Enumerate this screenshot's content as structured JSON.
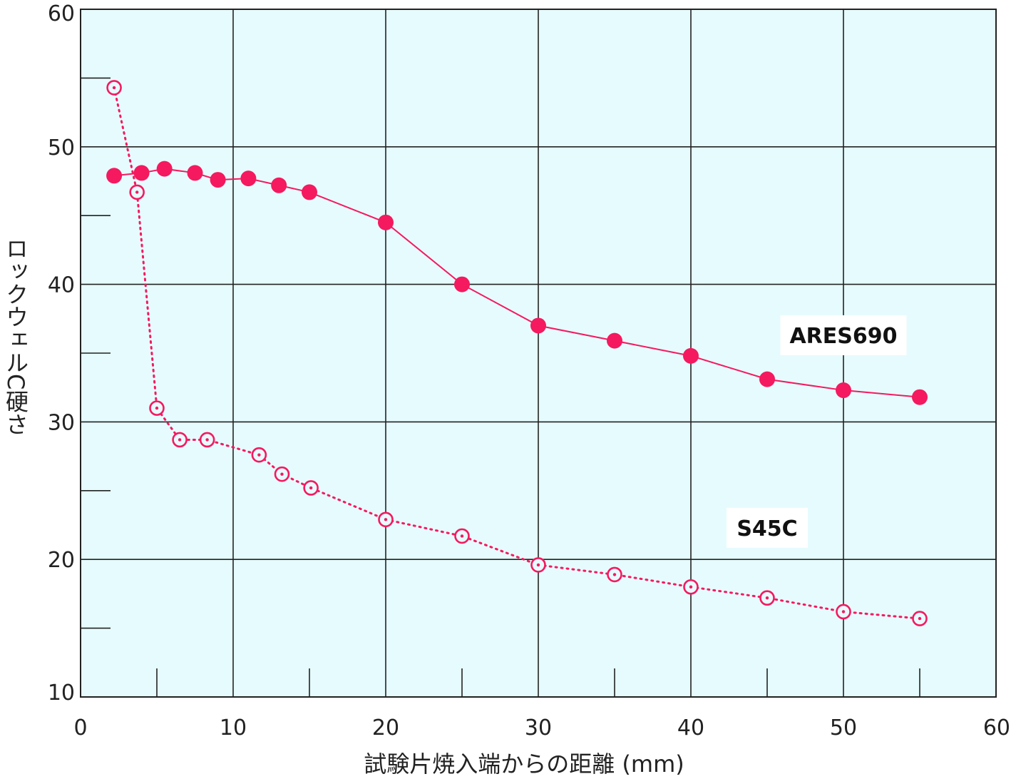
{
  "chart_data": {
    "type": "line",
    "xlabel": "試験片焼入端からの距離 (mm)",
    "ylabel": "ロックウェルC硬さ",
    "xlim": [
      0,
      60
    ],
    "ylim": [
      10,
      60
    ],
    "x_ticks": [
      "0",
      "10",
      "20",
      "30",
      "40",
      "50",
      "60"
    ],
    "y_ticks": [
      "10",
      "20",
      "30",
      "40",
      "50",
      "60"
    ],
    "x_minor_ticks": [
      5,
      15,
      25,
      35,
      45,
      55
    ],
    "y_minor_ticks": [
      15,
      25,
      35,
      45,
      55
    ],
    "grid": true,
    "plot_background": "#e6fbfd",
    "series": [
      {
        "name": "ARES690",
        "color": "#f5195f",
        "marker": "filled-circle",
        "line": "solid",
        "x": [
          2.2,
          4.0,
          5.5,
          7.5,
          9.0,
          11.0,
          13.0,
          15.0,
          20.0,
          25.0,
          30.0,
          35.0,
          40.0,
          45.0,
          50.0,
          55.0
        ],
        "y": [
          47.9,
          48.1,
          48.4,
          48.1,
          47.6,
          47.7,
          47.2,
          46.7,
          44.5,
          40.0,
          37.0,
          35.9,
          34.8,
          33.1,
          32.3,
          31.8
        ]
      },
      {
        "name": "S45C",
        "color": "#f5195f",
        "marker": "open-circle",
        "line": "dotted",
        "x": [
          2.2,
          3.7,
          5.0,
          6.5,
          8.3,
          11.7,
          13.2,
          15.1,
          20.0,
          25.0,
          30.0,
          35.0,
          40.0,
          45.0,
          50.0,
          55.0
        ],
        "y": [
          54.3,
          46.7,
          31.0,
          28.7,
          28.7,
          27.6,
          26.2,
          25.2,
          22.9,
          21.7,
          19.6,
          18.9,
          18.0,
          17.2,
          16.2,
          15.7
        ]
      }
    ],
    "labels": [
      {
        "text": "ARES690",
        "x": 50.0,
        "y": 36.3
      },
      {
        "text": "S45C",
        "x": 45.0,
        "y": 22.3
      }
    ]
  }
}
